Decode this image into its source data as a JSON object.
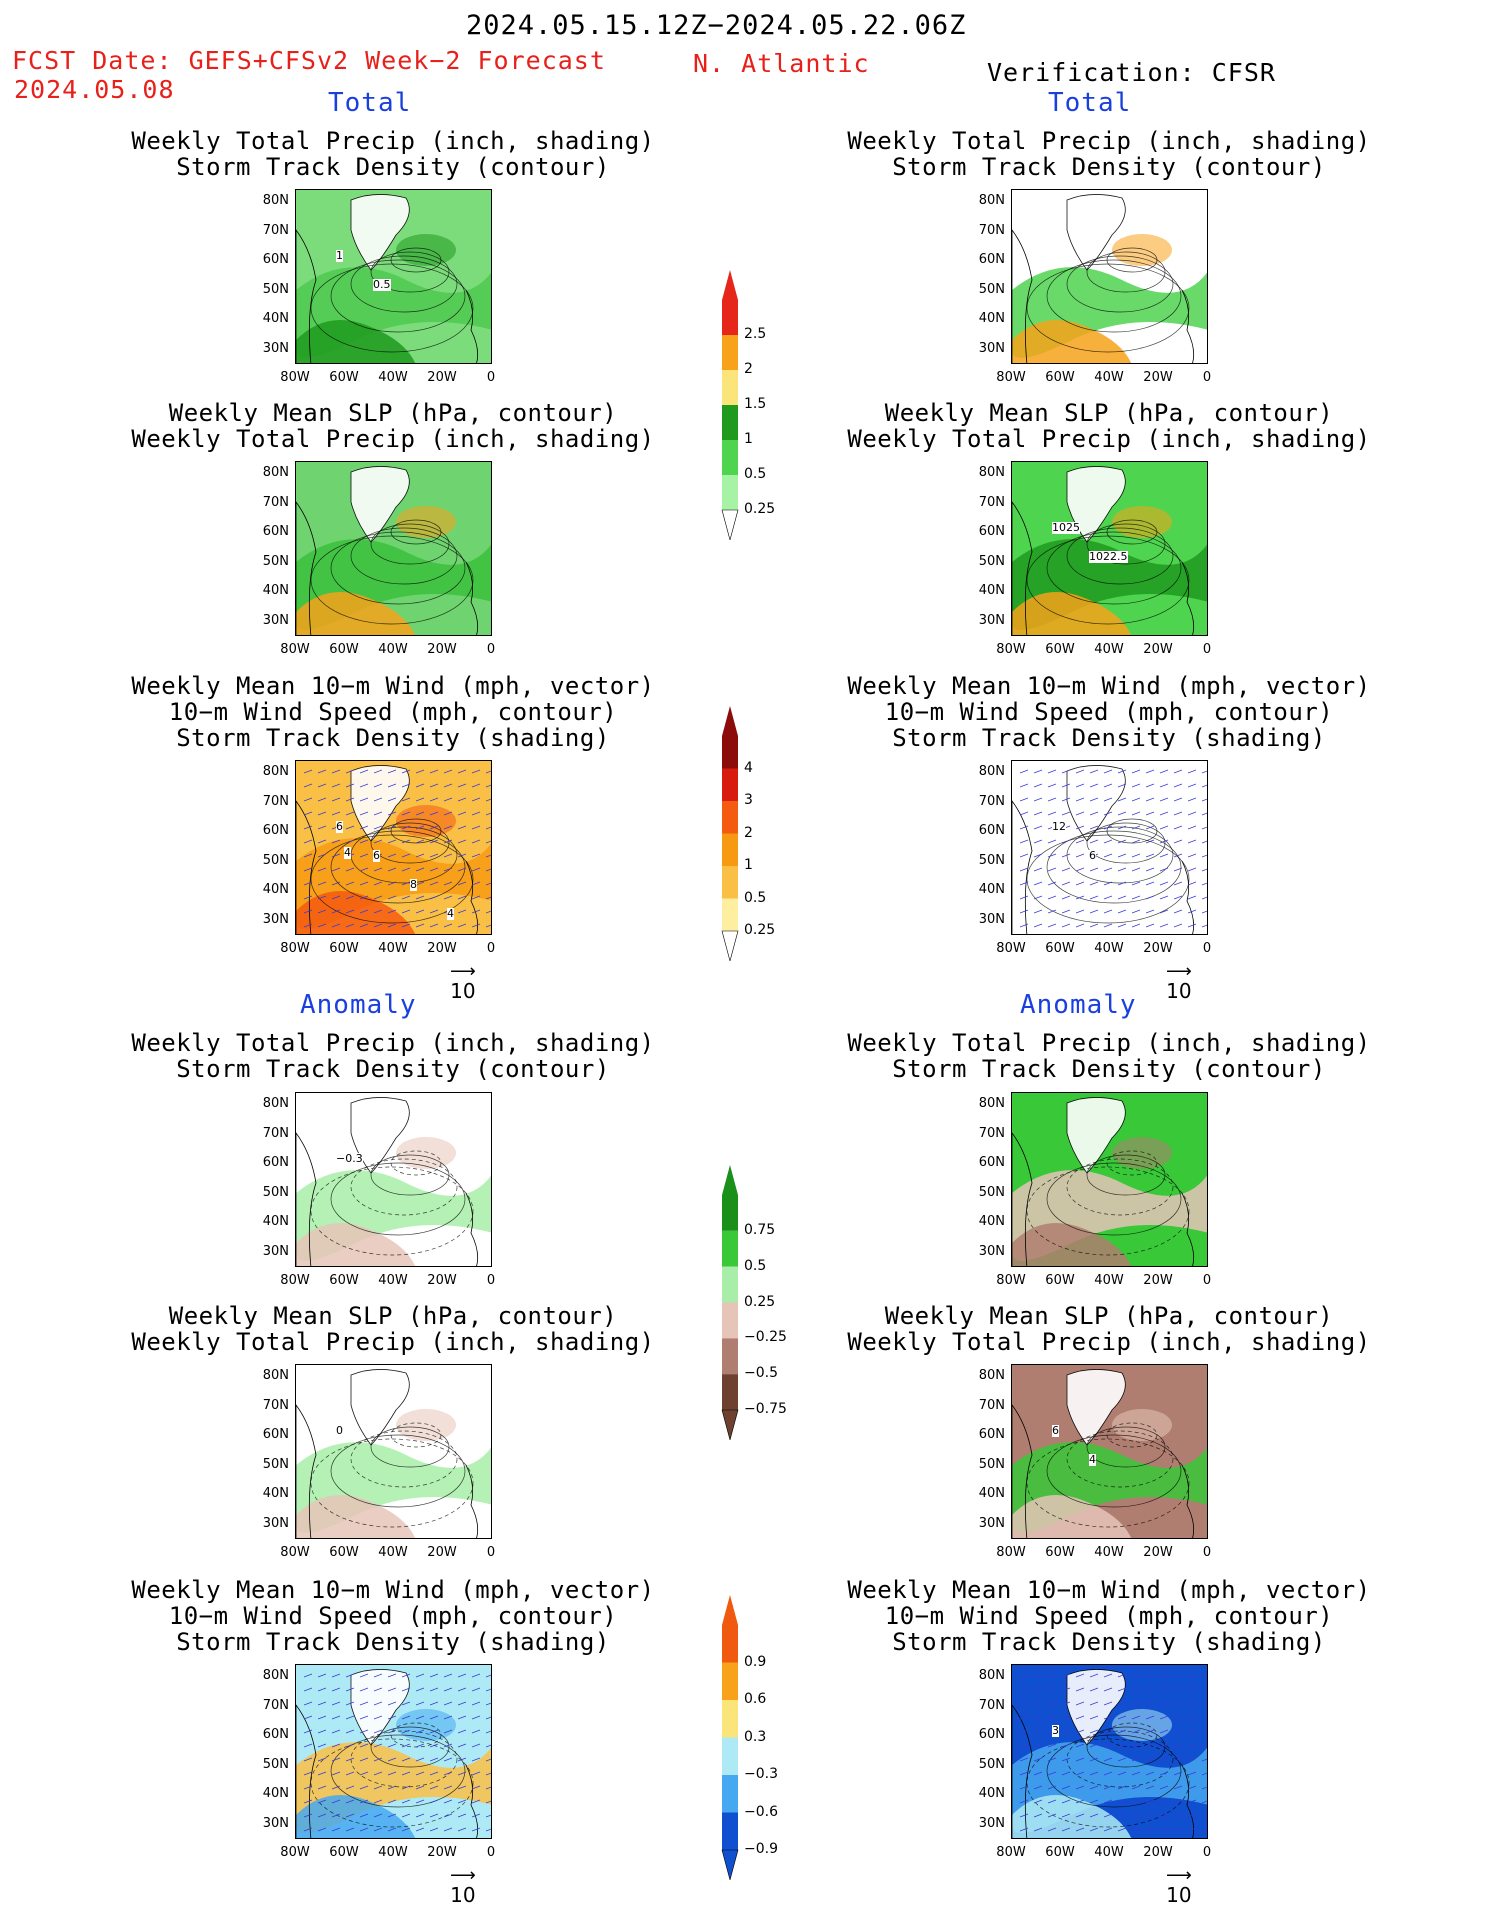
{
  "header": {
    "period": "2024.05.15.12Z−2024.05.22.06Z",
    "fcst_label": "FCST Date: GEFS+CFSv2 Week−2 Forecast",
    "fcst_date": "2024.05.08",
    "region": "N. Atlantic",
    "verification": "Verification: CFSR"
  },
  "sections": {
    "total": "Total",
    "anomaly": "Anomaly"
  },
  "panel_titles": {
    "precip_storm": [
      "Weekly Total Precip (inch, shading)",
      "Storm Track Density (contour)"
    ],
    "slp_precip": [
      "Weekly Mean SLP (hPa, contour)",
      "Weekly Total Precip (inch, shading)"
    ],
    "wind_storm": [
      "Weekly Mean 10−m Wind (mph, vector)",
      "10−m Wind Speed (mph, contour)",
      "Storm Track Density (shading)"
    ]
  },
  "axes": {
    "lat_labels": [
      "80N",
      "70N",
      "60N",
      "50N",
      "40N",
      "30N"
    ],
    "lon_labels": [
      "80W",
      "60W",
      "40W",
      "20W",
      "0"
    ]
  },
  "contour_labels": {
    "fcst_total_precip_storm": [
      "1",
      "0.5"
    ],
    "obs_slp": [
      "1025",
      "1022.5"
    ],
    "fcst_total_wind": [
      "6",
      "6",
      "8",
      "4",
      "4"
    ],
    "obs_total_wind": [
      "12",
      "6"
    ],
    "fcst_anom_precip_storm": [
      "−0.3"
    ],
    "fcst_anom_slp": [
      "0"
    ],
    "obs_anom_slp": [
      "6",
      "4"
    ],
    "obs_anom_wind": [
      "3"
    ]
  },
  "colorbars": {
    "total_precip": {
      "labels": [
        "2.5",
        "2",
        "1.5",
        "1",
        "0.5",
        "0.25"
      ],
      "colors": [
        "#e6261a",
        "#f7a21a",
        "#fbe47a",
        "#1f9a1f",
        "#4fd44f",
        "#a6f3a6"
      ]
    },
    "total_storm": {
      "labels": [
        "4",
        "3",
        "2",
        "1",
        "0.5",
        "0.25"
      ],
      "colors": [
        "#8c0c0c",
        "#d71c0f",
        "#f45a10",
        "#f79a12",
        "#fac045",
        "#fdeea0"
      ]
    },
    "anom_precip": {
      "labels": [
        "0.75",
        "0.5",
        "0.25",
        "−0.25",
        "−0.5",
        "−0.75"
      ],
      "colors": [
        "#1a8f1a",
        "#38c838",
        "#a8eea8",
        "#e6c4b8",
        "#b07e70",
        "#6e4030"
      ]
    },
    "anom_storm": {
      "labels": [
        "0.9",
        "0.6",
        "0.3",
        "−0.3",
        "−0.6",
        "−0.9"
      ],
      "colors": [
        "#f05a10",
        "#f7a21a",
        "#fbe47a",
        "#aeeaf5",
        "#46a8f0",
        "#1050d0"
      ]
    }
  },
  "vector_ref": "10"
}
